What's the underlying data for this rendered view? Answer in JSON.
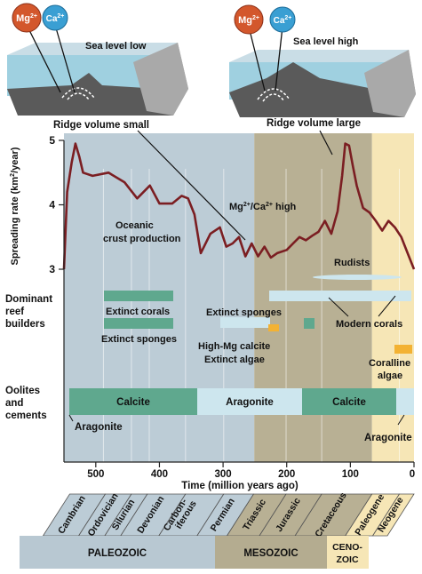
{
  "panels": {
    "left": {
      "ion_mg": "Mg",
      "ion_ca": "Ca",
      "sea_level": "Sea level low",
      "ridge": "Ridge volume small"
    },
    "right": {
      "ion_mg": "Mg",
      "ion_ca": "Ca",
      "sea_level": "Sea level high",
      "ridge": "Ridge volume large"
    },
    "ion_charge": "2+"
  },
  "ratio_label": {
    "mg": "Mg",
    "ca": "/Ca",
    "high": " high",
    "charge": "2+"
  },
  "y_axis": {
    "label": "Spreading rate (km",
    "label_sup": "2",
    "label_end": "/year)",
    "ticks": [
      "5",
      "4",
      "3"
    ]
  },
  "curve_label": {
    "line1": "Oceanic",
    "line2": "crust production"
  },
  "rows": {
    "reef": {
      "line1": "Dominant",
      "line2": "reef",
      "line3": "builders"
    },
    "oolite": {
      "line1": "Oolites",
      "line2": "and",
      "line3": "cements"
    }
  },
  "reef_labels": {
    "extinct_corals": "Extinct corals",
    "extinct_sponges_1": "Extinct sponges",
    "extinct_sponges_2": "Extinct sponges",
    "rudists": "Rudists",
    "modern_corals": "Modern corals",
    "high_mg_calcite": "High-Mg calcite",
    "extinct_algae": "Extinct algae",
    "coralline_algae_1": "Coralline",
    "coralline_algae_2": "algae"
  },
  "cements": {
    "calcite_1": "Calcite",
    "aragonite_1": "Aragonite",
    "calcite_2": "Calcite",
    "aragonite_left": "Aragonite",
    "aragonite_right": "Aragonite"
  },
  "x_axis": {
    "label": "Time (million years ago)",
    "ticks": [
      "500",
      "400",
      "300",
      "200",
      "100",
      "0"
    ]
  },
  "periods": [
    "Cambrian",
    "Ordovician",
    "Silurian",
    "Devonian",
    "Carbon-",
    "iferous",
    "Permian",
    "Triassic",
    "Jurassic",
    "Cretaceous",
    "Paleogene",
    "Neogene"
  ],
  "eras": {
    "paleozoic": "PALEOZOIC",
    "mesozoic": "MESOZOIC",
    "cenozoic_1": "CENO-",
    "cenozoic_2": "ZOIC"
  },
  "colors": {
    "paleozoic": "#bcccd6",
    "mesozoic": "#b8b094",
    "cenozoic": "#f6e6b6",
    "curve": "#7b1e22",
    "reef_bar": "#5fa88e",
    "modern_bar": "#cde6ee",
    "orange": "#f3b233"
  },
  "chart_data": {
    "type": "line",
    "x_unit": "million years ago",
    "xlim": [
      0,
      550
    ],
    "ylim": [
      3,
      5
    ],
    "x": [
      550,
      545,
      538,
      532,
      526,
      520,
      505,
      480,
      455,
      435,
      415,
      400,
      380,
      365,
      355,
      345,
      335,
      320,
      305,
      295,
      285,
      275,
      265,
      255,
      245,
      235,
      225,
      215,
      200,
      190,
      180,
      170,
      160,
      150,
      140,
      130,
      120,
      113,
      108,
      102,
      96,
      90,
      80,
      70,
      60,
      50,
      40,
      30,
      20,
      10,
      0
    ],
    "y": [
      3.0,
      4.2,
      4.65,
      4.95,
      4.75,
      4.5,
      4.45,
      4.5,
      4.35,
      4.1,
      4.3,
      4.02,
      4.02,
      4.14,
      4.1,
      3.85,
      3.25,
      3.55,
      3.65,
      3.35,
      3.4,
      3.5,
      3.2,
      3.4,
      3.2,
      3.35,
      3.18,
      3.25,
      3.3,
      3.4,
      3.5,
      3.45,
      3.52,
      3.58,
      3.75,
      3.55,
      3.9,
      4.45,
      4.95,
      4.92,
      4.6,
      4.3,
      3.95,
      3.88,
      3.75,
      3.6,
      3.75,
      3.65,
      3.5,
      3.25,
      3.0
    ]
  }
}
